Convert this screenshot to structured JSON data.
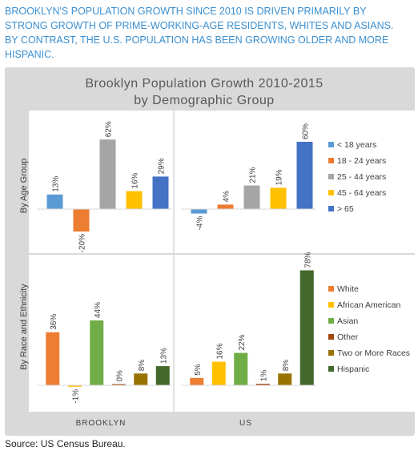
{
  "headline": "BROOKLYN'S POPULATION GROWTH SINCE 2010 IS DRIVEN PRIMARILY BY STRONG GROWTH OF PRIME-WORKING-AGE RESIDENTS, WHITES AND ASIANS. BY CONTRAST, THE U.S. POPULATION HAS BEEN GROWING OLDER AND MORE HISPANIC.",
  "source": "Source: US Census Bureau.",
  "colors": {
    "panel_bg": "#d9d9d9",
    "plot_bg": "#ffffff",
    "headline": "#3b8fd0"
  },
  "chart_data": {
    "type": "bar",
    "title": "Brooklyn Population Growth 2010-2015",
    "subtitle": "by Demographic Group",
    "columns": [
      "BROOKLYN",
      "US"
    ],
    "grid": false,
    "legend_position": "right",
    "value_format": "percent",
    "panels": [
      {
        "row_label": "By Age Group",
        "categories": [
          "< 18 years",
          "18 - 24 years",
          "25 - 44 years",
          "45 - 64 years",
          "> 65"
        ],
        "colors": [
          "#5b9bd5",
          "#ed7d31",
          "#a5a5a5",
          "#ffc000",
          "#4472c4"
        ],
        "ylim": [
          -22,
          62
        ],
        "series": [
          {
            "name": "BROOKLYN",
            "values": [
              13,
              -20,
              62,
              16,
              29
            ]
          },
          {
            "name": "US",
            "values": [
              -4,
              4,
              21,
              19,
              60
            ]
          }
        ],
        "data_labels": {
          "BROOKLYN": [
            "13%",
            "-20%",
            "62%",
            "16%",
            "29%"
          ],
          "US": [
            "-4%",
            "4%",
            "21%",
            "19%",
            "60%"
          ]
        }
      },
      {
        "row_label": "By Race and Ethnicity",
        "categories": [
          "White",
          "African American",
          "Asian",
          "Other",
          "Two or More Races",
          "Hispanic"
        ],
        "colors": [
          "#ed7d31",
          "#ffc000",
          "#70ad47",
          "#9e480e",
          "#997300",
          "#43682b"
        ],
        "ylim": [
          -3,
          78
        ],
        "series": [
          {
            "name": "BROOKLYN",
            "values": [
              36,
              -1,
              44,
              0,
              8,
              13
            ]
          },
          {
            "name": "US",
            "values": [
              5,
              16,
              22,
              1,
              8,
              78
            ]
          }
        ],
        "data_labels": {
          "BROOKLYN": [
            "36%",
            "-1%",
            "44%",
            "0%",
            "8%",
            "13%"
          ],
          "US": [
            "5%",
            "16%",
            "22%",
            "1%",
            "8%",
            "78%"
          ]
        }
      }
    ]
  }
}
